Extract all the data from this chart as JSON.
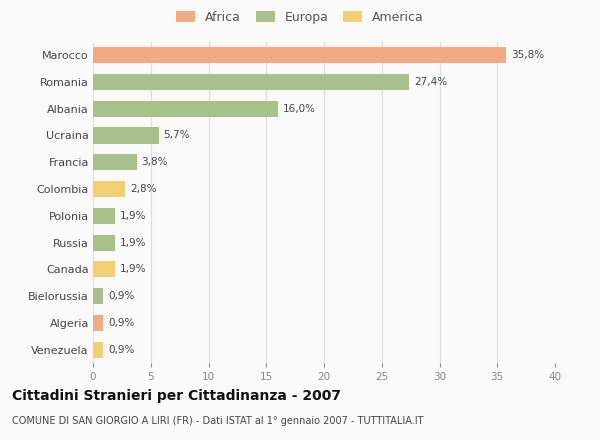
{
  "countries": [
    "Marocco",
    "Romania",
    "Albania",
    "Ucraina",
    "Francia",
    "Colombia",
    "Polonia",
    "Russia",
    "Canada",
    "Bielorussia",
    "Algeria",
    "Venezuela"
  ],
  "values": [
    35.8,
    27.4,
    16.0,
    5.7,
    3.8,
    2.8,
    1.9,
    1.9,
    1.9,
    0.9,
    0.9,
    0.9
  ],
  "labels": [
    "35,8%",
    "27,4%",
    "16,0%",
    "5,7%",
    "3,8%",
    "2,8%",
    "1,9%",
    "1,9%",
    "1,9%",
    "0,9%",
    "0,9%",
    "0,9%"
  ],
  "colors": [
    "#F2AA84",
    "#A8C08A",
    "#A8C08A",
    "#A8C08A",
    "#A8C08A",
    "#F0D070",
    "#A8C08A",
    "#A8C08A",
    "#F0D070",
    "#A8C08A",
    "#F2AA84",
    "#F0D070"
  ],
  "categories": [
    "Africa",
    "Europa",
    "America"
  ],
  "legend_colors": [
    "#F2AA84",
    "#A8C08A",
    "#F0D070"
  ],
  "xlim": [
    0,
    40
  ],
  "xticks": [
    0,
    5,
    10,
    15,
    20,
    25,
    30,
    35,
    40
  ],
  "title": "Cittadini Stranieri per Cittadinanza - 2007",
  "subtitle": "COMUNE DI SAN GIORGIO A LIRI (FR) - Dati ISTAT al 1° gennaio 2007 - TUTTITALIA.IT",
  "bg_color": "#FAFAFA",
  "grid_color": "#DDDDDD"
}
